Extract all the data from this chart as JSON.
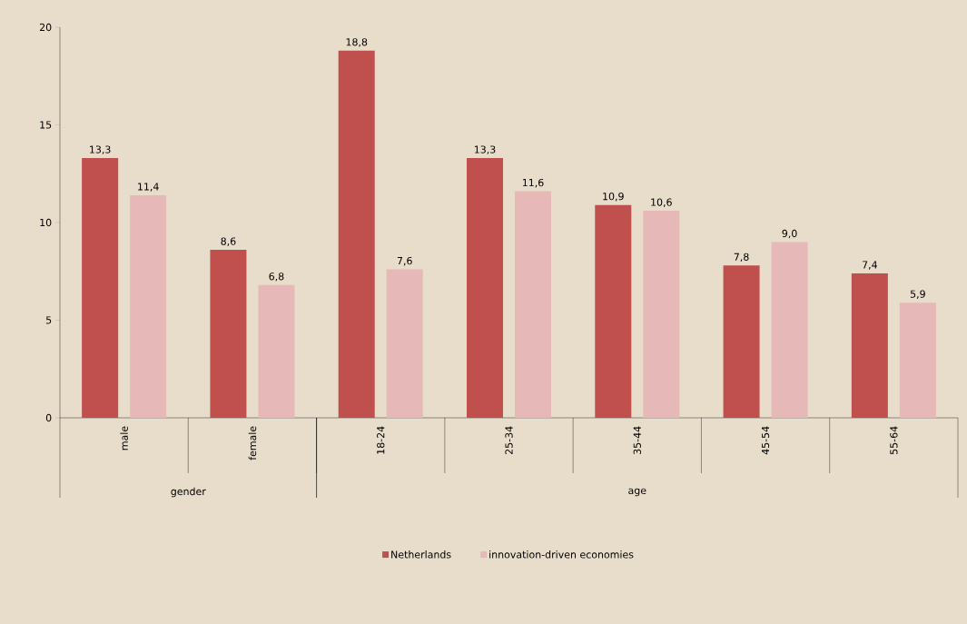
{
  "chart_data": {
    "type": "bar",
    "categories": [
      "male",
      "female",
      "18-24",
      "25-34",
      "35-44",
      "45-54",
      "55-64"
    ],
    "series": [
      {
        "name": "Netherlands",
        "color": "#c0504d",
        "values": [
          13.3,
          8.6,
          18.8,
          13.3,
          10.9,
          7.8,
          7.4
        ],
        "value_labels": [
          "13,3",
          "8,6",
          "18,8",
          "13,3",
          "10,9",
          "7,8",
          "7,4"
        ]
      },
      {
        "name": "innovation-driven economies",
        "color": "#e6b9b8",
        "values": [
          11.4,
          6.8,
          7.6,
          11.6,
          10.6,
          9.0,
          5.9
        ],
        "value_labels": [
          "11,4",
          "6,8",
          "7,6",
          "11,6",
          "10,6",
          "9,0",
          "5,9"
        ]
      }
    ],
    "ylim": [
      0,
      20
    ],
    "yticks": [
      0,
      5,
      10,
      15,
      20
    ],
    "grid": false,
    "legend": "bottom",
    "annotations": [
      "gender",
      "age"
    ]
  }
}
